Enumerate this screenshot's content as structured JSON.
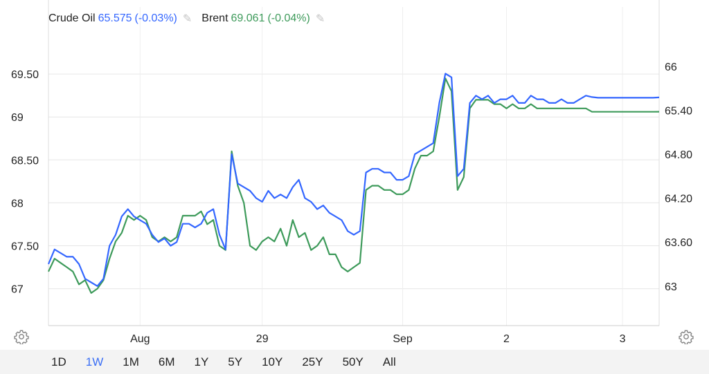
{
  "legend": {
    "crude": {
      "name": "Crude Oil",
      "value": "65.575",
      "change": "(-0.03%)",
      "color": "#3366ff"
    },
    "brent": {
      "name": "Brent",
      "value": "69.061",
      "change": "(-0.04%)",
      "color": "#3d9a5a"
    }
  },
  "range_buttons": [
    "1D",
    "1W",
    "1M",
    "6M",
    "1Y",
    "5Y",
    "10Y",
    "25Y",
    "50Y",
    "All"
  ],
  "active_range": "1W",
  "chart_data": {
    "type": "line",
    "x_tick_labels": [
      "Aug",
      "29",
      "Sep",
      "2",
      "3"
    ],
    "left_axis": {
      "ticks": [
        67,
        67.5,
        68,
        68.5,
        69,
        69.5
      ],
      "tick_labels": [
        "67",
        "67.50",
        "68",
        "68.50",
        "69",
        "69.50"
      ],
      "ylim": [
        66.57,
        70.0
      ]
    },
    "right_axis": {
      "ticks": [
        63,
        63.6,
        64.2,
        64.8,
        65.4,
        66
      ],
      "tick_labels": [
        "63",
        "63.60",
        "64.20",
        "64.80",
        "65.40",
        "66"
      ],
      "ylim": [
        62.46,
        66.48
      ]
    },
    "grid": true,
    "series": [
      {
        "name": "Crude Oil",
        "axis": "right",
        "color": "#3366ff",
        "x": [
          0,
          1,
          2,
          3,
          4,
          5,
          6,
          7,
          8,
          9,
          10,
          11,
          12,
          13,
          14,
          15,
          16,
          17,
          18,
          19,
          20,
          21,
          22,
          23,
          24,
          25,
          26,
          27,
          28,
          29,
          30,
          31,
          32,
          33,
          34,
          35,
          36,
          37,
          38,
          39,
          40,
          41,
          42,
          43,
          44,
          45,
          46,
          47,
          48,
          49,
          50,
          51,
          52,
          53,
          54,
          55,
          56,
          57,
          58,
          59,
          60,
          61,
          62,
          63,
          64,
          65,
          66,
          67,
          68,
          69,
          70,
          71,
          72,
          73,
          74,
          75,
          76,
          77,
          78,
          79,
          80,
          81,
          82,
          83,
          84,
          85,
          86,
          87,
          88,
          89,
          90,
          91,
          92,
          93,
          94,
          95,
          96,
          97,
          98,
          99,
          100
        ],
        "values": [
          63.3,
          63.5,
          63.45,
          63.4,
          63.4,
          63.3,
          63.1,
          63.05,
          63.0,
          63.1,
          63.55,
          63.7,
          63.95,
          64.05,
          63.95,
          63.9,
          63.85,
          63.7,
          63.6,
          63.65,
          63.55,
          63.6,
          63.85,
          63.85,
          63.8,
          63.85,
          64.0,
          64.05,
          63.7,
          63.5,
          64.8,
          64.4,
          64.35,
          64.3,
          64.2,
          64.15,
          64.3,
          64.2,
          64.25,
          64.2,
          64.35,
          64.45,
          64.2,
          64.15,
          64.05,
          64.1,
          64.0,
          63.95,
          63.9,
          63.75,
          63.7,
          63.75,
          64.55,
          64.6,
          64.6,
          64.55,
          64.55,
          64.45,
          64.45,
          64.5,
          64.8,
          64.85,
          64.9,
          64.95,
          65.5,
          65.9,
          65.85,
          64.5,
          64.6,
          65.5,
          65.6,
          65.55,
          65.6,
          65.5,
          65.55,
          65.55,
          65.6,
          65.5,
          65.5,
          65.6,
          65.55,
          65.55,
          65.5,
          65.5,
          65.55,
          65.5,
          65.5,
          65.55,
          65.6,
          65.58,
          65.57,
          65.57,
          65.57,
          65.57,
          65.57,
          65.57,
          65.57,
          65.57,
          65.57,
          65.57,
          65.575
        ]
      },
      {
        "name": "Brent",
        "axis": "left",
        "color": "#3d9a5a",
        "x": [
          0,
          1,
          2,
          3,
          4,
          5,
          6,
          7,
          8,
          9,
          10,
          11,
          12,
          13,
          14,
          15,
          16,
          17,
          18,
          19,
          20,
          21,
          22,
          23,
          24,
          25,
          26,
          27,
          28,
          29,
          30,
          31,
          32,
          33,
          34,
          35,
          36,
          37,
          38,
          39,
          40,
          41,
          42,
          43,
          44,
          45,
          46,
          47,
          48,
          49,
          50,
          51,
          52,
          53,
          54,
          55,
          56,
          57,
          58,
          59,
          60,
          61,
          62,
          63,
          64,
          65,
          66,
          67,
          68,
          69,
          70,
          71,
          72,
          73,
          74,
          75,
          76,
          77,
          78,
          79,
          80,
          81,
          82,
          83,
          84,
          85,
          86,
          87,
          88,
          89,
          90,
          91,
          92,
          93,
          94,
          95,
          96,
          97,
          98,
          99,
          100
        ],
        "values": [
          67.2,
          67.35,
          67.3,
          67.25,
          67.2,
          67.05,
          67.1,
          66.95,
          67.0,
          67.1,
          67.35,
          67.55,
          67.65,
          67.85,
          67.8,
          67.85,
          67.8,
          67.6,
          67.55,
          67.6,
          67.55,
          67.6,
          67.85,
          67.85,
          67.85,
          67.9,
          67.75,
          67.8,
          67.5,
          67.45,
          68.6,
          68.2,
          68.0,
          67.5,
          67.45,
          67.55,
          67.6,
          67.55,
          67.7,
          67.5,
          67.8,
          67.6,
          67.65,
          67.45,
          67.5,
          67.6,
          67.4,
          67.4,
          67.25,
          67.2,
          67.25,
          67.3,
          68.15,
          68.2,
          68.2,
          68.15,
          68.15,
          68.1,
          68.1,
          68.15,
          68.4,
          68.55,
          68.55,
          68.6,
          69.0,
          69.45,
          69.3,
          68.15,
          68.3,
          69.1,
          69.2,
          69.2,
          69.2,
          69.15,
          69.15,
          69.1,
          69.15,
          69.1,
          69.1,
          69.15,
          69.1,
          69.1,
          69.1,
          69.1,
          69.1,
          69.1,
          69.1,
          69.1,
          69.1,
          69.06,
          69.06,
          69.06,
          69.06,
          69.06,
          69.06,
          69.06,
          69.06,
          69.06,
          69.06,
          69.06,
          69.061
        ]
      }
    ]
  }
}
